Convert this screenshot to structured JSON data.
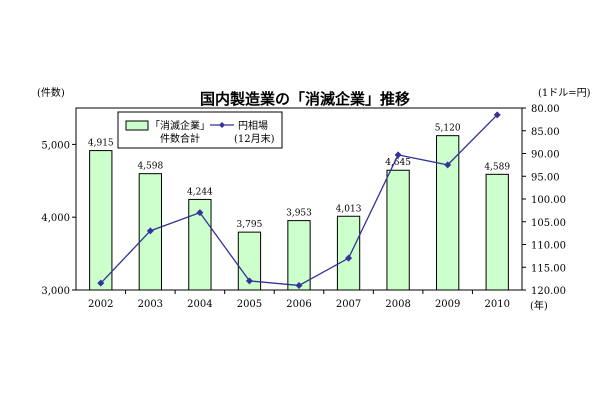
{
  "chart_data": {
    "type": "bar",
    "title": "国内製造業の「消滅企業」推移",
    "categories": [
      "2002",
      "2003",
      "2004",
      "2005",
      "2006",
      "2007",
      "2008",
      "2009",
      "2010"
    ],
    "x_unit": "(年)",
    "left_axis": {
      "unit": "(件数)",
      "ylim": [
        3000,
        5500
      ],
      "ticks": [
        3000,
        4000,
        5000
      ],
      "tick_labels": [
        "3,000",
        "4,000",
        "5,000"
      ]
    },
    "right_axis": {
      "unit": "(1ドル=円)",
      "ylim": [
        80,
        120
      ],
      "inverted": true,
      "ticks": [
        80,
        85,
        90,
        95,
        100,
        105,
        110,
        115,
        120
      ],
      "tick_labels": [
        "80.00",
        "85.00",
        "90.00",
        "95.00",
        "100.00",
        "105.00",
        "110.00",
        "115.00",
        "120.00"
      ]
    },
    "series": [
      {
        "name": "「消滅企業」件数合計",
        "name_lines": [
          "「消滅企業」",
          "件数合計"
        ],
        "type": "bar",
        "axis": "left",
        "values": [
          4915,
          4598,
          4244,
          3795,
          3953,
          4013,
          4645,
          5120,
          4589
        ],
        "value_labels": [
          "4,915",
          "4,598",
          "4,244",
          "3,795",
          "3,953",
          "4,013",
          "4,645",
          "5,120",
          "4,589"
        ],
        "fill_color": "#ccffcc",
        "stroke_color": "#000000"
      },
      {
        "name": "円相場(12月末)",
        "name_lines": [
          "円相場",
          "(12月末)"
        ],
        "type": "line",
        "axis": "right",
        "values": [
          118.5,
          107.0,
          103.0,
          118.0,
          119.0,
          113.0,
          90.3,
          92.5,
          81.5
        ],
        "color": "#333399"
      }
    ],
    "grid": false,
    "legend_position": "top-left"
  }
}
